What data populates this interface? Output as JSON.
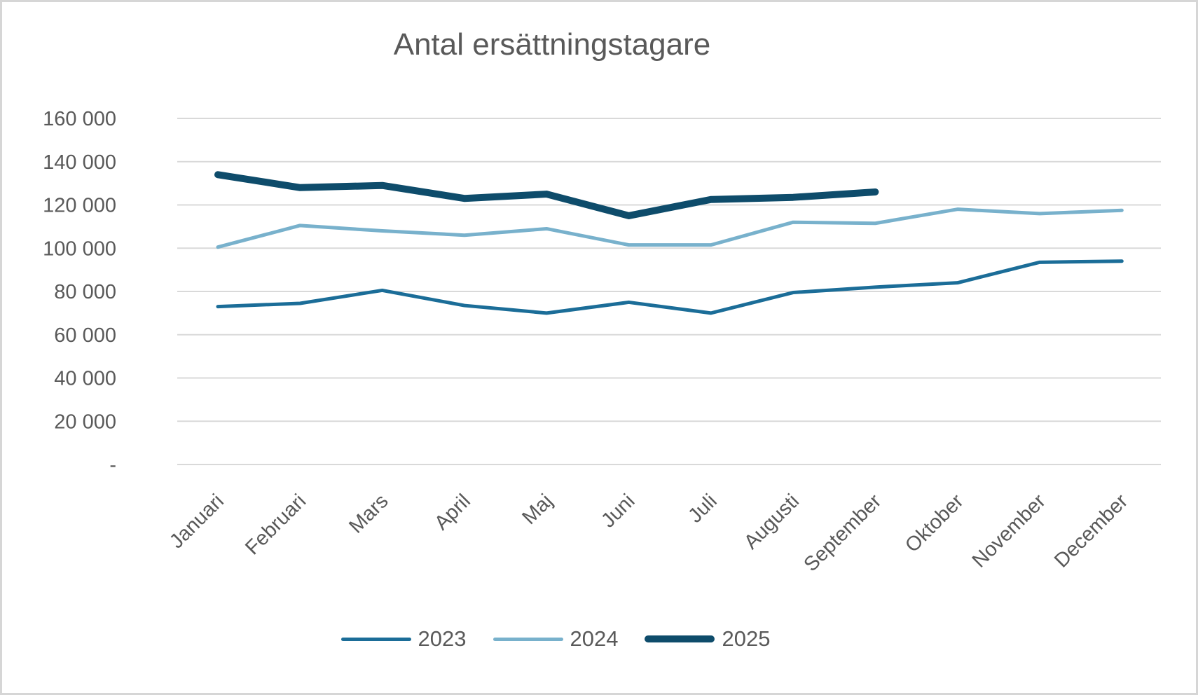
{
  "chart_data": {
    "type": "line",
    "title": "Antal ersättningstagare",
    "categories": [
      "Januari",
      "Februari",
      "Mars",
      "April",
      "Maj",
      "Juni",
      "Juli",
      "Augusti",
      "September",
      "Oktober",
      "November",
      "December"
    ],
    "series": [
      {
        "name": "2023",
        "color": "#1b6d98",
        "stroke_width": 5,
        "values": [
          73000,
          74500,
          80500,
          73500,
          70000,
          75000,
          70000,
          79500,
          82000,
          84000,
          93500,
          94000
        ]
      },
      {
        "name": "2024",
        "color": "#78b1cc",
        "stroke_width": 5,
        "values": [
          100500,
          110500,
          108000,
          106000,
          109000,
          101500,
          101500,
          112000,
          111500,
          118000,
          116000,
          117500
        ]
      },
      {
        "name": "2025",
        "color": "#0e4c6b",
        "stroke_width": 10,
        "values": [
          134000,
          128000,
          129000,
          123000,
          125000,
          115000,
          122500,
          123500,
          126000
        ]
      }
    ],
    "y_axis": {
      "min": 0,
      "max": 160000,
      "step": 20000,
      "tick_labels": [
        "-",
        "20 000",
        "40 000",
        "60 000",
        "80 000",
        "100 000",
        "120 000",
        "140 000",
        "160 000"
      ]
    },
    "x_axis_rotation_deg": 45,
    "grid": true,
    "legend_position": "bottom",
    "colors": {
      "text": "#595959",
      "gridline": "#d9d9d9",
      "frame_border": "#d6d6d6",
      "background": "#ffffff"
    }
  }
}
